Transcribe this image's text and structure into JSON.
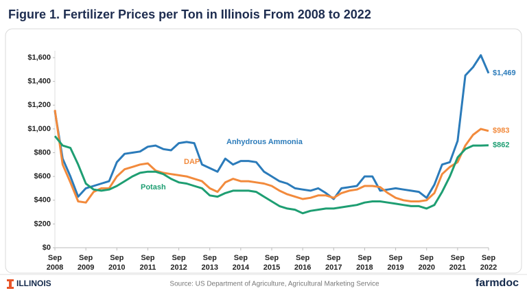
{
  "chart_data": {
    "type": "line",
    "title": "Figure 1. Fertilizer Prices per Ton in Illinois From 2008 to 2022",
    "x": [
      "2008-09",
      "2008-12",
      "2009-03",
      "2009-06",
      "2009-09",
      "2009-12",
      "2010-03",
      "2010-06",
      "2010-09",
      "2010-12",
      "2011-03",
      "2011-06",
      "2011-09",
      "2011-12",
      "2012-03",
      "2012-06",
      "2012-09",
      "2012-12",
      "2013-03",
      "2013-06",
      "2013-09",
      "2013-12",
      "2014-03",
      "2014-06",
      "2014-09",
      "2014-12",
      "2015-03",
      "2015-06",
      "2015-09",
      "2015-12",
      "2016-03",
      "2016-06",
      "2016-09",
      "2016-12",
      "2017-03",
      "2017-06",
      "2017-09",
      "2017-12",
      "2018-03",
      "2018-06",
      "2018-09",
      "2018-12",
      "2019-03",
      "2019-06",
      "2019-09",
      "2019-12",
      "2020-03",
      "2020-06",
      "2020-09",
      "2020-12",
      "2021-03",
      "2021-06",
      "2021-09",
      "2021-12",
      "2022-03",
      "2022-06",
      "2022-09"
    ],
    "series": [
      {
        "name": "Anhydrous Ammonia",
        "color": "#2b7bba",
        "values": [
          1150,
          750,
          600,
          430,
          500,
          520,
          540,
          560,
          720,
          790,
          800,
          810,
          850,
          860,
          830,
          820,
          880,
          890,
          880,
          700,
          670,
          640,
          750,
          700,
          730,
          730,
          720,
          640,
          600,
          560,
          540,
          500,
          490,
          480,
          500,
          460,
          410,
          500,
          510,
          520,
          600,
          600,
          480,
          490,
          500,
          490,
          480,
          470,
          420,
          530,
          700,
          720,
          900,
          1450,
          1520,
          1620,
          1469
        ],
        "value_labels": [
          null,
          null,
          null,
          null,
          null,
          null,
          null,
          null,
          null,
          null,
          null,
          null,
          null,
          null,
          null,
          null,
          null,
          null,
          null,
          null,
          null,
          null,
          null,
          null,
          null,
          null,
          null,
          null,
          null,
          null,
          null,
          null,
          null,
          null,
          null,
          null,
          null,
          null,
          null,
          null,
          null,
          null,
          null,
          null,
          null,
          null,
          null,
          null,
          null,
          null,
          null,
          null,
          null,
          null,
          null,
          null,
          "$1,469"
        ]
      },
      {
        "name": "DAP",
        "color": "#f28a3c",
        "values": [
          1160,
          700,
          550,
          390,
          380,
          470,
          500,
          500,
          600,
          660,
          680,
          700,
          710,
          650,
          630,
          620,
          610,
          600,
          580,
          560,
          500,
          470,
          550,
          580,
          560,
          560,
          550,
          540,
          520,
          480,
          450,
          430,
          410,
          420,
          440,
          440,
          420,
          460,
          480,
          490,
          520,
          520,
          510,
          460,
          420,
          400,
          390,
          390,
          400,
          460,
          620,
          680,
          720,
          860,
          950,
          1000,
          983
        ],
        "value_labels": [
          null,
          null,
          null,
          null,
          null,
          null,
          null,
          null,
          null,
          null,
          null,
          null,
          null,
          null,
          null,
          null,
          null,
          null,
          null,
          null,
          null,
          null,
          null,
          null,
          null,
          null,
          null,
          null,
          null,
          null,
          null,
          null,
          null,
          null,
          null,
          null,
          null,
          null,
          null,
          null,
          null,
          null,
          null,
          null,
          null,
          null,
          null,
          null,
          null,
          null,
          null,
          null,
          null,
          null,
          null,
          null,
          "$983"
        ]
      },
      {
        "name": "Potash",
        "color": "#1e9e72",
        "values": [
          940,
          860,
          840,
          700,
          540,
          490,
          480,
          490,
          520,
          560,
          600,
          630,
          640,
          640,
          620,
          580,
          550,
          540,
          520,
          500,
          440,
          430,
          460,
          480,
          480,
          480,
          470,
          430,
          390,
          350,
          330,
          320,
          290,
          310,
          320,
          330,
          330,
          340,
          350,
          360,
          380,
          390,
          390,
          380,
          370,
          360,
          350,
          350,
          330,
          360,
          470,
          600,
          760,
          830,
          860,
          860,
          862
        ],
        "value_labels": [
          null,
          null,
          null,
          null,
          null,
          null,
          null,
          null,
          null,
          null,
          null,
          null,
          null,
          null,
          null,
          null,
          null,
          null,
          null,
          null,
          null,
          null,
          null,
          null,
          null,
          null,
          null,
          null,
          null,
          null,
          null,
          null,
          null,
          null,
          null,
          null,
          null,
          null,
          null,
          null,
          null,
          null,
          null,
          null,
          null,
          null,
          null,
          null,
          null,
          null,
          null,
          null,
          null,
          null,
          null,
          null,
          "$862"
        ]
      }
    ],
    "xlim": [
      "2008-09",
      "2022-09"
    ],
    "xticks": [
      {
        "value": "2008-09",
        "label": "Sep 2008"
      },
      {
        "value": "2009-09",
        "label": "Sep 2009"
      },
      {
        "value": "2010-09",
        "label": "Sep 2010"
      },
      {
        "value": "2011-09",
        "label": "Sep 2011"
      },
      {
        "value": "2012-09",
        "label": "Sep 2012"
      },
      {
        "value": "2013-09",
        "label": "Sep 2013"
      },
      {
        "value": "2014-09",
        "label": "Sep 2014"
      },
      {
        "value": "2015-09",
        "label": "Sep 2015"
      },
      {
        "value": "2016-09",
        "label": "Sep 2016"
      },
      {
        "value": "2017-09",
        "label": "Sep 2017"
      },
      {
        "value": "2018-09",
        "label": "Sep 2018"
      },
      {
        "value": "2019-09",
        "label": "Sep 2019"
      },
      {
        "value": "2020-09",
        "label": "Sep 2020"
      },
      {
        "value": "2021-09",
        "label": "Sep 2021"
      },
      {
        "value": "2022-09",
        "label": "Sep 2022"
      }
    ],
    "ylim": [
      0,
      1600
    ],
    "yticks": [
      {
        "value": 0,
        "label": "$0"
      },
      {
        "value": 200,
        "label": "$200"
      },
      {
        "value": 400,
        "label": "$400"
      },
      {
        "value": 600,
        "label": "$600"
      },
      {
        "value": 800,
        "label": "$800"
      },
      {
        "value": 1000,
        "label": "$1,000"
      },
      {
        "value": 1200,
        "label": "$1,200"
      },
      {
        "value": 1400,
        "label": "$1,400"
      },
      {
        "value": 1600,
        "label": "$1,600"
      }
    ],
    "grid": false
  },
  "footer": {
    "logo": "ILLINOIS",
    "source": "Source: US Department of Agriculture, Agricultural Marketing Service",
    "brand": "farmdoc"
  }
}
